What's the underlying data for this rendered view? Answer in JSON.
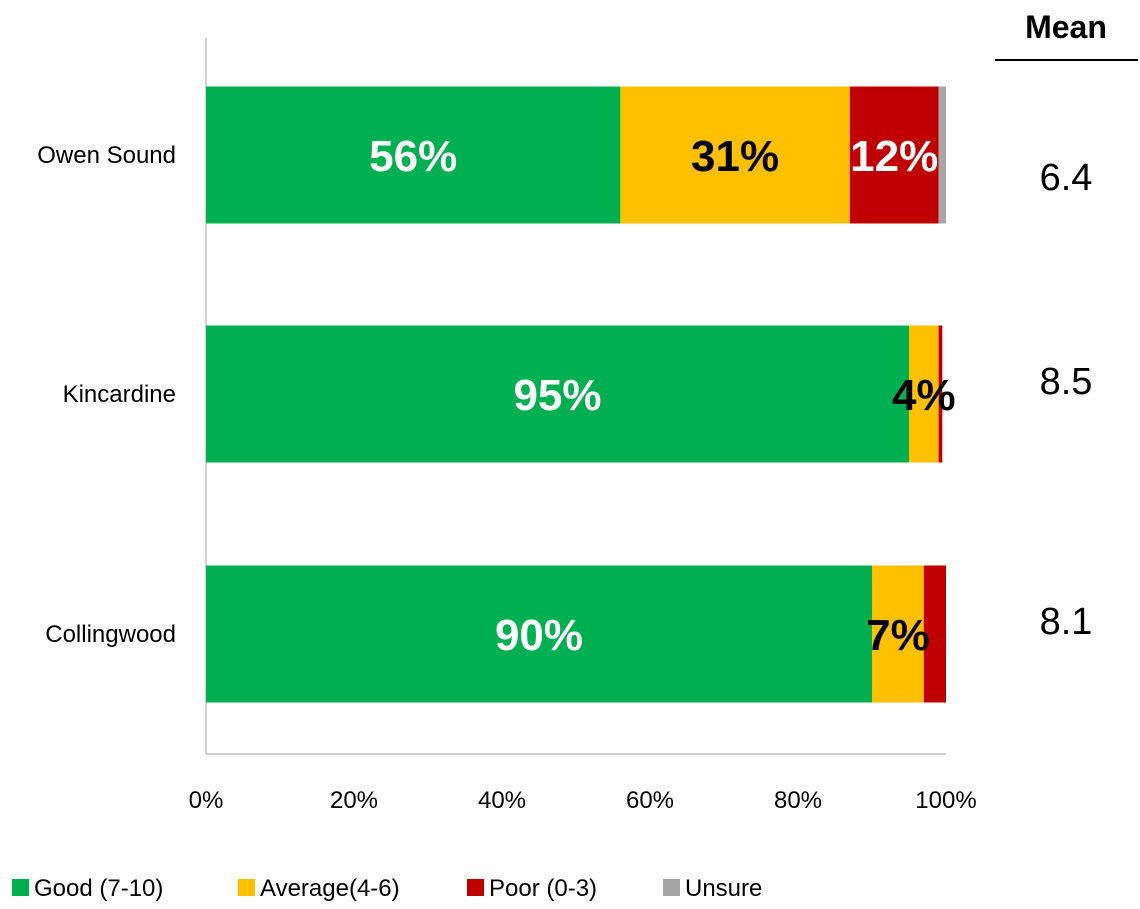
{
  "chart_data": {
    "type": "bar",
    "orientation": "horizontal",
    "stacked": true,
    "categories": [
      "Owen Sound",
      "Kincardine",
      "Collingwood"
    ],
    "series": [
      {
        "name": "Good (7-10)",
        "color": "#00b050",
        "values": [
          56,
          95,
          90
        ],
        "labels": [
          "56%",
          "95%",
          "90%"
        ]
      },
      {
        "name": "Average(4-6)",
        "color": "#ffc000",
        "values": [
          31,
          4,
          7
        ],
        "labels": [
          "31%",
          "4%",
          "7%"
        ]
      },
      {
        "name": "Poor (0-3)",
        "color": "#c00000",
        "values": [
          12,
          0.5,
          3
        ],
        "labels": [
          "12%",
          "",
          ""
        ]
      },
      {
        "name": "Unsure",
        "color": "#a6a6a6",
        "values": [
          1,
          0,
          0
        ],
        "labels": [
          "",
          "",
          ""
        ]
      }
    ],
    "xlim": [
      0,
      100
    ],
    "x_ticks": [
      "0%",
      "20%",
      "40%",
      "60%",
      "80%",
      "100%"
    ],
    "grid": false,
    "legend_position": "bottom-left",
    "mean": {
      "header": "Mean",
      "values": [
        "6.4",
        "8.5",
        "8.1"
      ]
    }
  }
}
